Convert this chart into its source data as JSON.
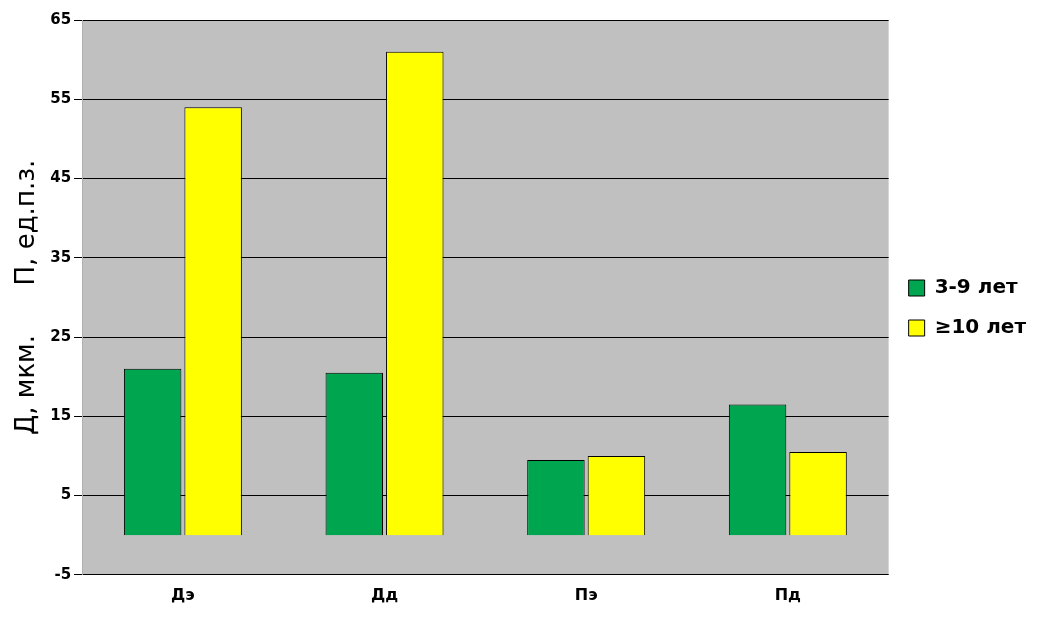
{
  "chart_data": {
    "type": "bar",
    "ylabel": "Д, мкм.      П, ед.п.з.",
    "categories": [
      "Дэ",
      "Дд",
      "Пэ",
      "Пд"
    ],
    "series": [
      {
        "name": "3-9 лет",
        "color": "#00a64f",
        "values": [
          21,
          20.5,
          9.5,
          16.5
        ]
      },
      {
        "name": "≥10 лет",
        "color": "#ffff00",
        "values": [
          54,
          61,
          10,
          10.5
        ]
      }
    ],
    "ylim": [
      -5,
      65
    ],
    "yticks": [
      -5,
      5,
      15,
      25,
      35,
      45,
      55,
      65
    ],
    "grid": "y",
    "legend": "right"
  }
}
